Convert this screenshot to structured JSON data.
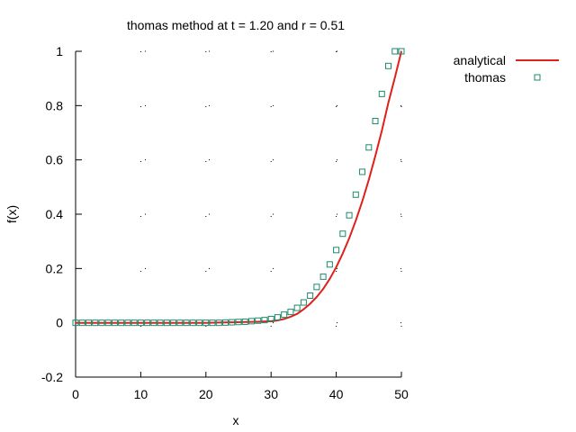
{
  "chart_data": {
    "type": "line",
    "title": "thomas method at t = 1.20 and r = 0.51",
    "xlabel": "x",
    "ylabel": "f(x)",
    "xlim": [
      0,
      50
    ],
    "ylim": [
      -0.2,
      1
    ],
    "x_ticks": [
      0,
      10,
      20,
      30,
      40,
      50
    ],
    "x_tick_labels": [
      "0",
      "10",
      "20",
      "30",
      "40",
      "50"
    ],
    "y_ticks": [
      -0.2,
      0,
      0.2,
      0.4,
      0.6,
      0.8,
      1
    ],
    "y_tick_labels": [
      "-0.2",
      "0",
      "0.2",
      "0.4",
      "0.6",
      "0.8",
      "1"
    ],
    "grid": "dotted ticks only",
    "legend_position": "top-right, outside plot",
    "series": [
      {
        "name": "analytical",
        "style": "line",
        "color": "#e0201b",
        "x": [
          0,
          5,
          10,
          15,
          20,
          22,
          24,
          26,
          28,
          30,
          31,
          32,
          33,
          34,
          35,
          36,
          37,
          38,
          39,
          40,
          41,
          42,
          43,
          44,
          45,
          46,
          47,
          48,
          49,
          50
        ],
        "y": [
          0,
          0,
          0,
          0,
          0,
          0.001,
          0.002,
          0.003,
          0.004,
          0.006,
          0.009,
          0.014,
          0.022,
          0.033,
          0.05,
          0.07,
          0.095,
          0.125,
          0.162,
          0.205,
          0.255,
          0.312,
          0.376,
          0.448,
          0.527,
          0.614,
          0.708,
          0.81,
          0.904,
          1.0
        ]
      },
      {
        "name": "thomas",
        "style": "points",
        "marker": "open-square",
        "color": "#1b8a6b",
        "x": [
          0,
          1,
          2,
          3,
          4,
          5,
          6,
          7,
          8,
          9,
          10,
          11,
          12,
          13,
          14,
          15,
          16,
          17,
          18,
          19,
          20,
          21,
          22,
          23,
          24,
          25,
          26,
          27,
          28,
          29,
          30,
          31,
          32,
          33,
          34,
          35,
          36,
          37,
          38,
          39,
          40,
          41,
          42,
          43,
          44,
          45,
          46,
          47,
          48,
          49,
          50
        ],
        "y": [
          0,
          0,
          0,
          0,
          0,
          0,
          0,
          0,
          0,
          0,
          0,
          0,
          0,
          0,
          0,
          0,
          0,
          0,
          0,
          0,
          0,
          0,
          0,
          0.001,
          0.002,
          0.003,
          0.004,
          0.006,
          0.008,
          0.01,
          0.014,
          0.02,
          0.03,
          0.04,
          0.055,
          0.075,
          0.1,
          0.132,
          0.17,
          0.215,
          0.268,
          0.328,
          0.396,
          0.472,
          0.556,
          0.646,
          0.743,
          0.843,
          0.946,
          1.0,
          1.0
        ]
      }
    ]
  }
}
